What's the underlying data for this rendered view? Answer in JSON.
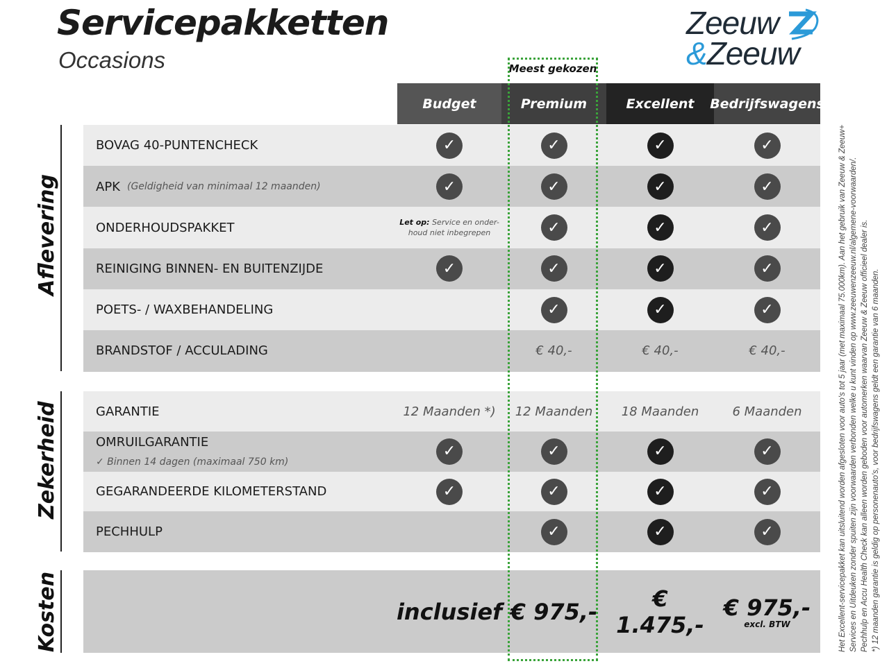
{
  "header": {
    "title": "Servicepakketten",
    "subtitle": "Occasions",
    "logo_text": [
      "Zeeuw",
      "&",
      "Zeeuw"
    ]
  },
  "highlight": {
    "label": "Meest gekozen",
    "color": "#3aa33a"
  },
  "columns": [
    {
      "name": "Budget",
      "bg": "#555555",
      "check": "#4a4a4a"
    },
    {
      "name": "Premium",
      "bg": "#3f3f3f",
      "check": "#4a4a4a"
    },
    {
      "name": "Excellent",
      "bg": "#232323",
      "check": "#1e1e1e"
    },
    {
      "name": "Bedrijfswagens",
      "bg": "#444444",
      "check": "#4a4a4a"
    }
  ],
  "sections": [
    {
      "name": "Aflevering",
      "rows": [
        {
          "label": "BOVAG 40-PUNTENCHECK",
          "cells": [
            "check",
            "check",
            "check",
            "check"
          ]
        },
        {
          "label": "APK",
          "note": "(Geldigheid van minimaal 12 maanden)",
          "cells": [
            "check",
            "check",
            "check",
            "check"
          ]
        },
        {
          "label": "ONDERHOUDSPAKKET",
          "cells": [
            {
              "bold": "Let op:",
              "text": " Service en onder-houd niet inbegrepen"
            },
            "check",
            "check",
            "check"
          ]
        },
        {
          "label": "REINIGING BINNEN- EN BUITENZIJDE",
          "cells": [
            "check",
            "check",
            "check",
            "check"
          ]
        },
        {
          "label": "POETS- / WAXBEHANDELING",
          "cells": [
            null,
            "check",
            "check",
            "check"
          ]
        },
        {
          "label": "BRANDSTOF / ACCULADING",
          "cells": [
            null,
            "€ 40,-",
            "€ 40,-",
            "€ 40,-"
          ]
        }
      ]
    },
    {
      "name": "Zekerheid",
      "rows": [
        {
          "label": "GARANTIE",
          "cells": [
            "12 Maanden *)",
            "12 Maanden",
            "18 Maanden",
            "6 Maanden"
          ]
        },
        {
          "label": "OMRUILGARANTIE",
          "sub": "✓   Binnen 14 dagen (maximaal 750 km)",
          "cells": [
            "check",
            "check",
            "check",
            "check"
          ]
        },
        {
          "label": "GEGARANDEERDE KILOMETERSTAND",
          "cells": [
            "check",
            "check",
            "check",
            "check"
          ]
        },
        {
          "label": "PECHHULP",
          "cells": [
            null,
            "check",
            "check",
            "check"
          ]
        }
      ]
    },
    {
      "name": "Kosten",
      "prices": [
        "inclusief",
        "€ 975,-",
        "€ 1.475,-",
        "€ 975,-"
      ],
      "price_note": "excl. BTW"
    }
  ],
  "footnotes": [
    "Het Excellent-servicepakket kan uitsluitend worden afgesloten voor auto's tot 5 jaar (met maximaal 75.000km). Aan het gebruik van Zeeuw & Zeeuw+",
    "Services en Uitdeuken zonder spuiten zijn voorwaarden verbonden welke u kunt vinden op www.zeeuwenzeeuw.nl/algemene-voorwaarden/.",
    "Pechhulp en Accu Health Check kan alleen worden geboden voor automerken waarvan Zeeuw & Zeeuw officieel dealer is.",
    "*) 12 maanden garantie is geldig op personenauto's, voor bedrijfswagens geldt een garantie van 6 maanden."
  ]
}
